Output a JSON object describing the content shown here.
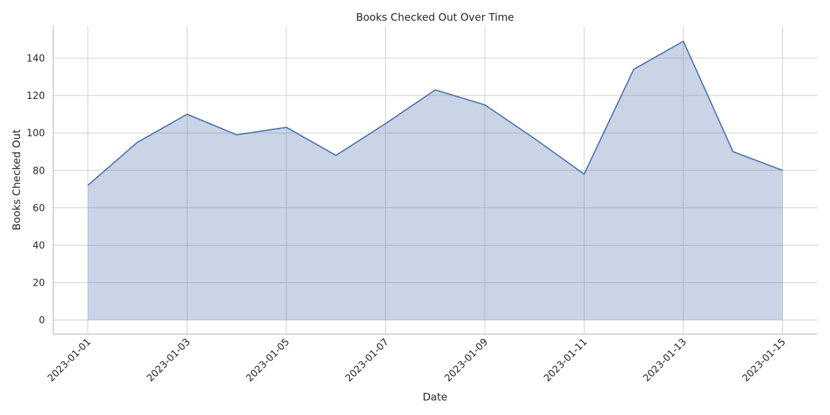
{
  "chart_data": {
    "type": "area",
    "title": "Books Checked Out Over Time",
    "xlabel": "Date",
    "ylabel": "Books Checked Out",
    "x": [
      "2023-01-01",
      "2023-01-02",
      "2023-01-03",
      "2023-01-04",
      "2023-01-05",
      "2023-01-06",
      "2023-01-07",
      "2023-01-08",
      "2023-01-09",
      "2023-01-10",
      "2023-01-11",
      "2023-01-12",
      "2023-01-13",
      "2023-01-14",
      "2023-01-15"
    ],
    "values": [
      72,
      95,
      110,
      99,
      103,
      88,
      105,
      123,
      115,
      97,
      78,
      134,
      149,
      90,
      80
    ],
    "x_ticks": [
      "2023-01-01",
      "2023-01-03",
      "2023-01-05",
      "2023-01-07",
      "2023-01-09",
      "2023-01-11",
      "2023-01-13",
      "2023-01-15"
    ],
    "y_ticks": [
      0,
      20,
      40,
      60,
      80,
      100,
      120,
      140
    ],
    "ylim": [
      -7.5,
      157
    ],
    "grid": true,
    "colors": {
      "line": "#4c72b0",
      "fill": "#c9d3e5",
      "grid": "#cccccc",
      "axis": "#bbbbbb",
      "text": "#262626"
    }
  }
}
